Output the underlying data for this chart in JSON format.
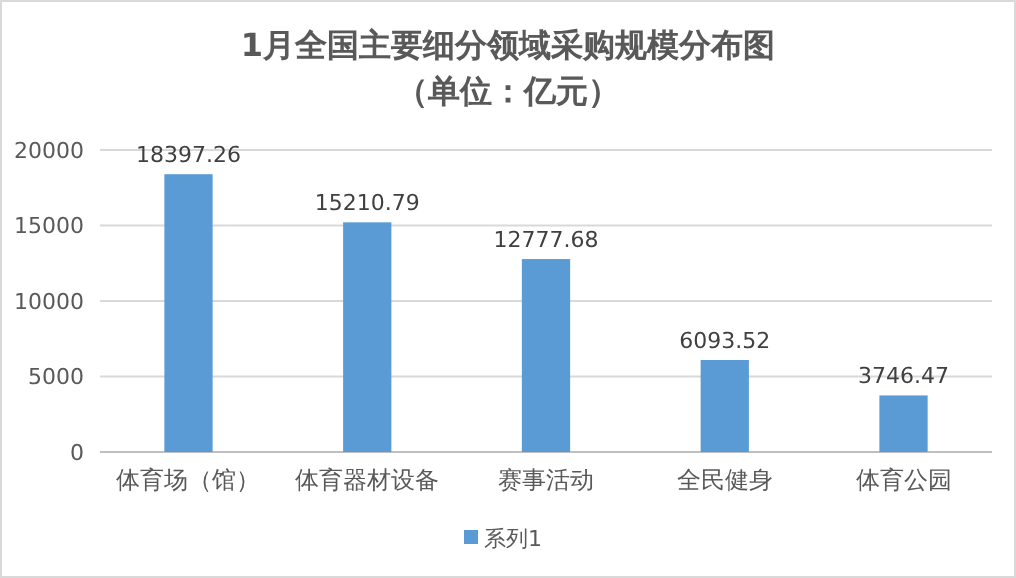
{
  "chart_data": {
    "type": "bar",
    "title": "1月全国主要细分领域采购规模分布图",
    "subtitle": "（单位：亿元）",
    "categories": [
      "体育场（馆）",
      "体育器材设备",
      "赛事活动",
      "全民健身",
      "体育公园"
    ],
    "series": [
      {
        "name": "系列1",
        "color": "#5b9bd5",
        "values": [
          18397.26,
          15210.79,
          12777.68,
          6093.52,
          3746.47
        ]
      }
    ],
    "ylim": [
      0,
      20000
    ],
    "yticks": [
      0,
      5000,
      10000,
      15000,
      20000
    ],
    "grid": "y",
    "legend": "bottom",
    "data_labels": true
  }
}
